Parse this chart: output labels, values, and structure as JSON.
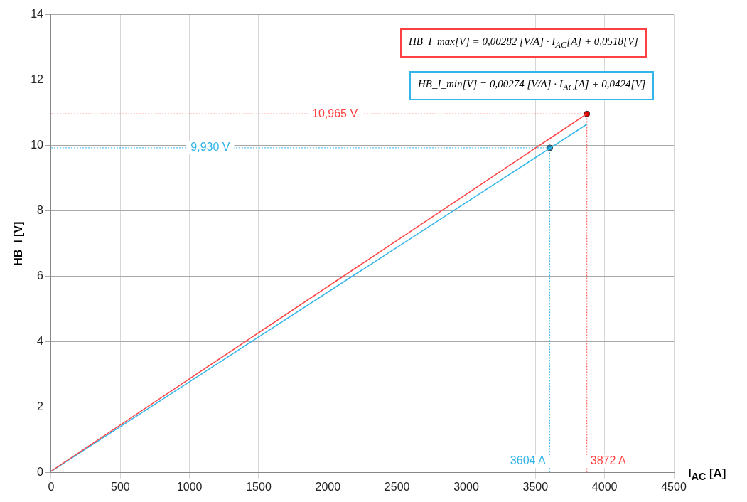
{
  "chart_data": {
    "type": "line",
    "xlabel": "I$_{AC}$ [A]",
    "ylabel": "HB_I [V]",
    "xlim": [
      0,
      4500
    ],
    "xticks": [
      0,
      500,
      1000,
      1500,
      2000,
      2500,
      3000,
      3500,
      4000,
      4500
    ],
    "ylim": [
      0,
      14
    ],
    "yticks": [
      0,
      2,
      4,
      6,
      8,
      10,
      12,
      14
    ],
    "grid": true,
    "legend": false,
    "marker": "none",
    "series": [
      {
        "color": "#ff4040",
        "x": [
          0,
          3872
        ],
        "values": [
          0.05,
          10.97
        ]
      },
      {
        "color": "#33b5ea",
        "x": [
          0,
          3872
        ],
        "values": [
          0.04,
          10.65
        ]
      },
      {
        "type": "scatter",
        "marker": "circle",
        "color": "#e00000",
        "x": [
          3872
        ],
        "values": [
          10.965
        ]
      },
      {
        "type": "scatter",
        "marker": "circle",
        "color": "#1a8fc4",
        "x": [
          3604
        ],
        "values": [
          9.93
        ]
      },
      {
        "line_style": "dotted",
        "color": "#ff4040",
        "x": [
          0,
          3872,
          3872
        ],
        "values": [
          10.965,
          10.965,
          0
        ]
      },
      {
        "line_style": "dotted",
        "color": "#33b5ea",
        "x": [
          0,
          3604,
          3604
        ],
        "values": [
          9.93,
          9.93,
          0
        ]
      }
    ],
    "annotations": [
      "HB_I_max[V] = 0,00282 [V/A] · I$_{AC}$[A] + 0,0518[V]",
      "HB_I_min[V] = 0,00274 [V/A] · I$_{AC}$[A] + 0,0424[V]",
      {
        "text": "10,965 V",
        "x": 2050,
        "y": 10.965
      },
      {
        "text": "9,930 V",
        "x": 1150,
        "y": 9.93
      },
      {
        "text": "3872 A",
        "x": 3872,
        "y": 0.35
      },
      {
        "text": "3604 A",
        "x": 3604,
        "y": 0.35
      }
    ]
  }
}
